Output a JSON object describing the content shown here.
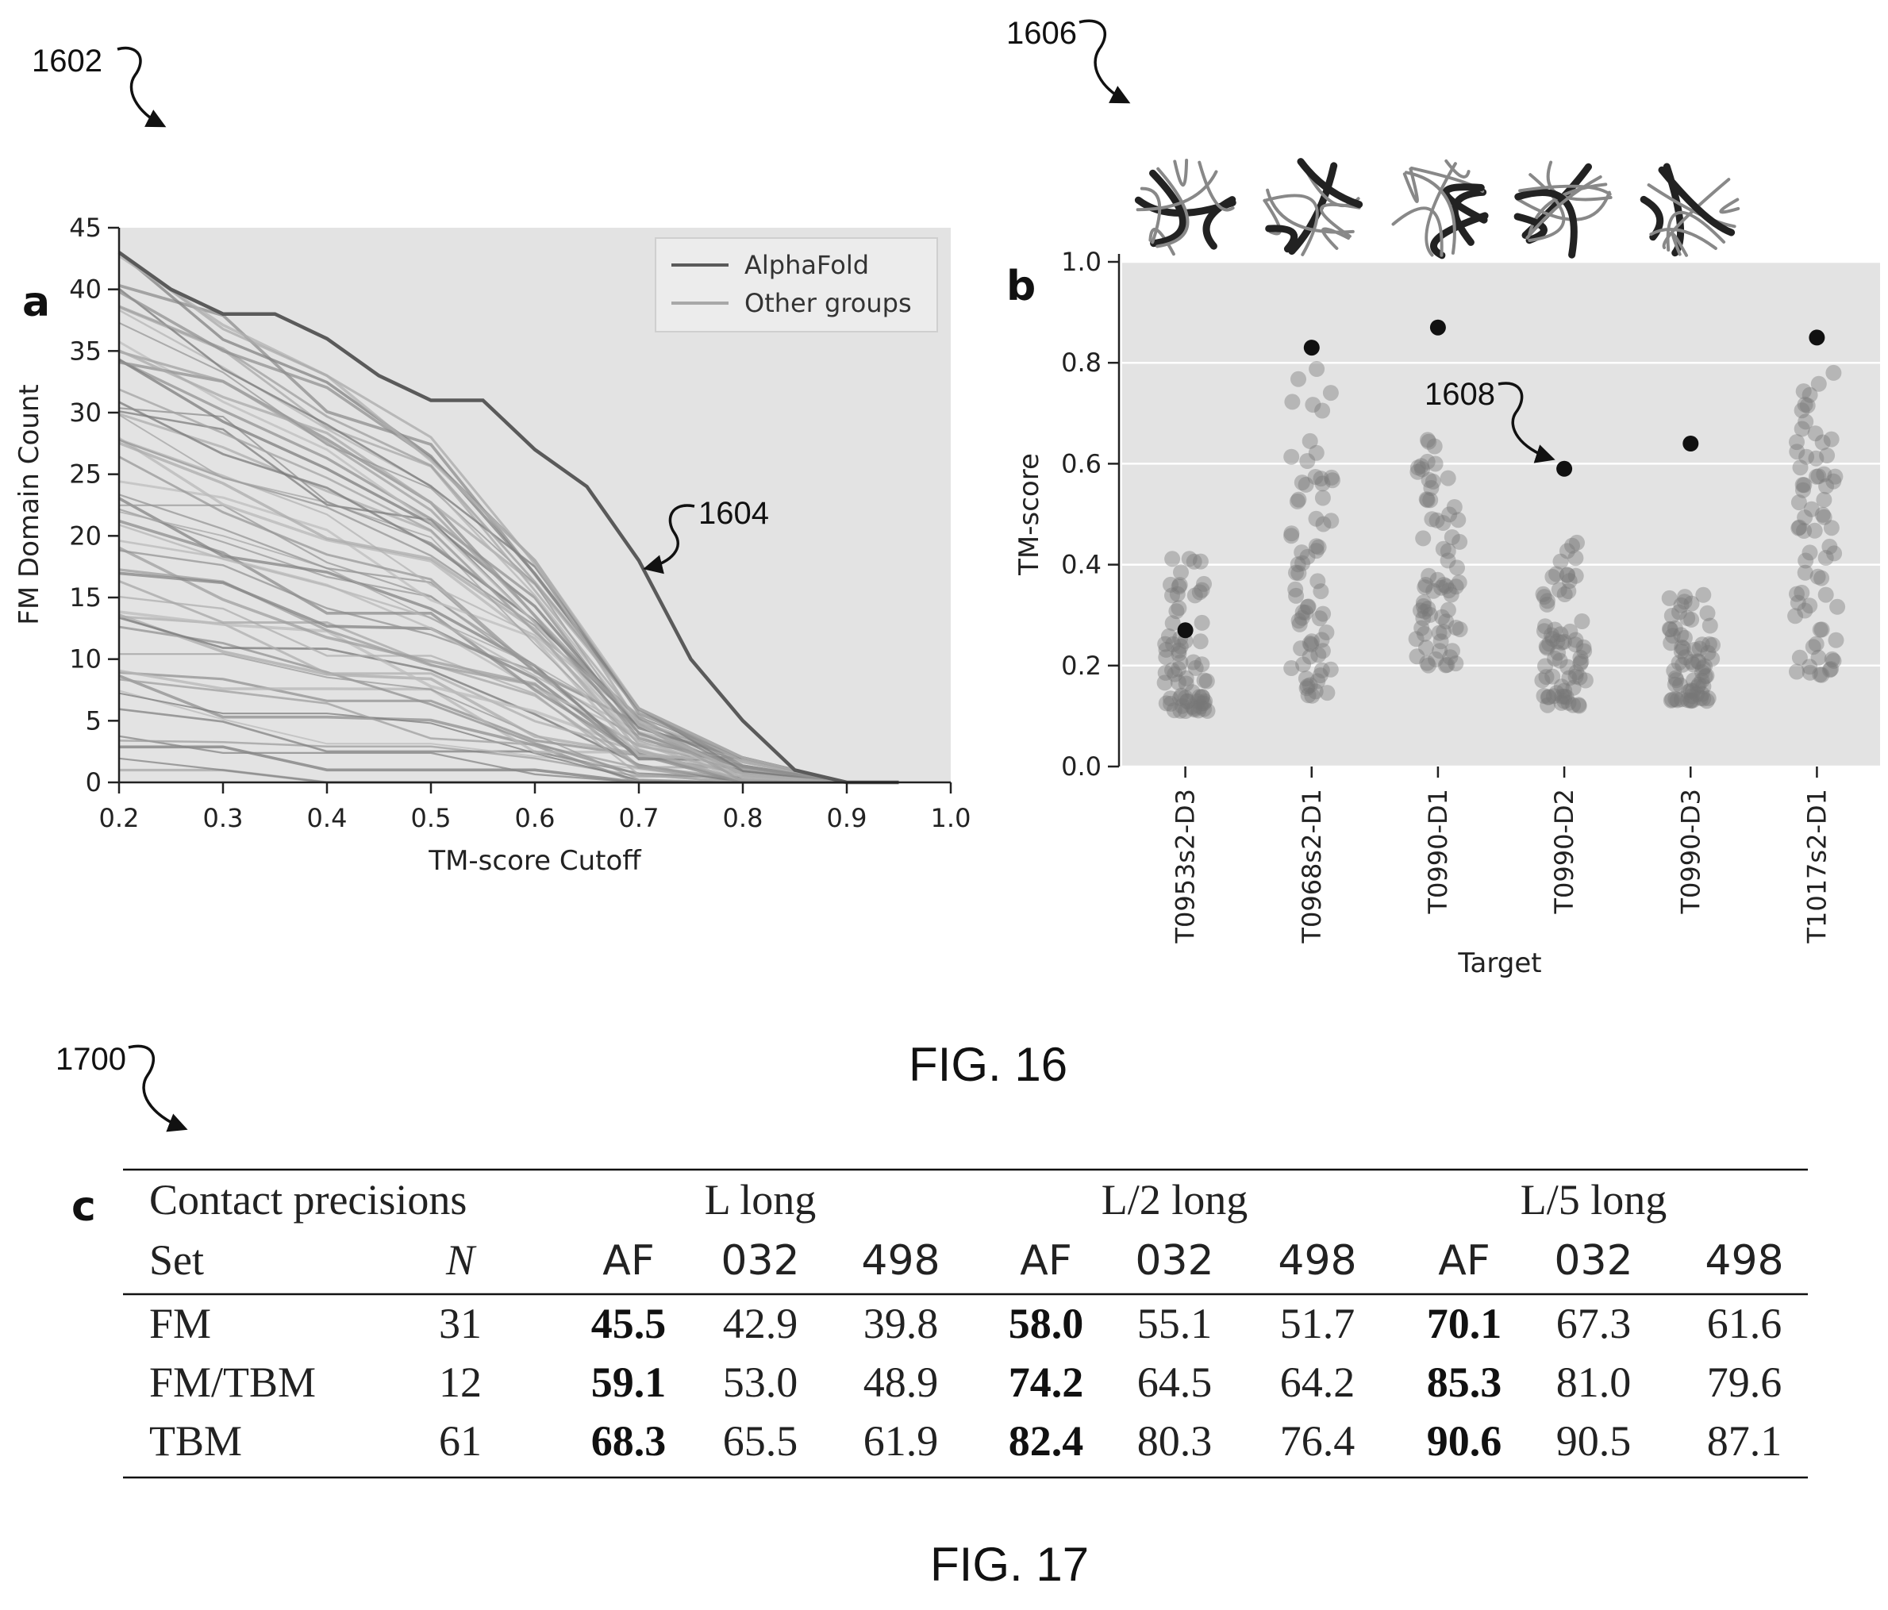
{
  "refs": {
    "r1602": "1602",
    "r1604": "1604",
    "r1606": "1606",
    "r1608": "1608",
    "r1700": "1700"
  },
  "captions": {
    "fig16": "FIG. 16",
    "fig17": "FIG. 17"
  },
  "colors": {
    "plot_bg": "#e3e3e3",
    "alphafold_line": "#5a5a5a",
    "other_lines": "#8e8e8e",
    "alphafold_dot": "#111111",
    "other_dot": "#777777"
  },
  "structure_icons": [
    "protein-structure-1",
    "protein-structure-2",
    "protein-structure-3",
    "protein-structure-4",
    "protein-structure-5"
  ],
  "chart_data": [
    {
      "panel": "a",
      "type": "line",
      "title": "",
      "xlabel": "TM-score Cutoff",
      "ylabel": "FM Domain Count",
      "xlim": [
        0.2,
        1.0
      ],
      "ylim": [
        0,
        45
      ],
      "xticks": [
        "0.2",
        "0.3",
        "0.4",
        "0.5",
        "0.6",
        "0.7",
        "0.8",
        "0.9",
        "1.0"
      ],
      "yticks": [
        "0",
        "5",
        "10",
        "15",
        "20",
        "25",
        "30",
        "35",
        "40",
        "45"
      ],
      "legend": {
        "placement": "top-right",
        "entries": [
          "AlphaFold",
          "Other groups"
        ]
      },
      "grid": false,
      "series": [
        {
          "name": "AlphaFold",
          "x": [
            0.2,
            0.25,
            0.3,
            0.35,
            0.4,
            0.45,
            0.5,
            0.55,
            0.6,
            0.65,
            0.7,
            0.75,
            0.8,
            0.85,
            0.9,
            0.95
          ],
          "y": [
            43,
            40,
            38,
            38,
            36,
            33,
            31,
            31,
            27,
            24,
            18,
            10,
            5,
            1,
            0,
            0
          ]
        },
        {
          "name": "Other groups",
          "count": 60,
          "x": [
            0.2,
            0.3,
            0.4,
            0.5,
            0.6,
            0.7,
            0.8,
            0.9,
            0.95
          ],
          "y_max": [
            43,
            38,
            33,
            28,
            18,
            6,
            2,
            0,
            0
          ],
          "y_min": [
            1,
            1,
            0,
            0,
            0,
            0,
            0,
            0,
            0
          ]
        }
      ]
    },
    {
      "panel": "b",
      "type": "scatter",
      "title": "",
      "xlabel": "Target",
      "ylabel": "TM-score",
      "ylim": [
        0.0,
        1.0
      ],
      "yticks": [
        "0.0",
        "0.2",
        "0.4",
        "0.6",
        "0.8",
        "1.0"
      ],
      "grid": true,
      "categories": [
        "T0953s2-D3",
        "T0968s2-D1",
        "T0990-D1",
        "T0990-D2",
        "T0990-D3",
        "T1017s2-D1"
      ],
      "alphafold": [
        0.27,
        0.83,
        0.87,
        0.59,
        0.64,
        0.85
      ],
      "other_groups_range": [
        [
          0.11,
          0.42
        ],
        [
          0.14,
          0.8
        ],
        [
          0.2,
          0.66
        ],
        [
          0.12,
          0.45
        ],
        [
          0.13,
          0.34
        ],
        [
          0.18,
          0.8
        ]
      ]
    },
    {
      "panel": "c",
      "type": "table",
      "header_groups": [
        "Contact precisions",
        "L long",
        "L/2 long",
        "L/5 long"
      ],
      "columns": [
        "Set",
        "N",
        "AF",
        "032",
        "498",
        "AF",
        "032",
        "498",
        "AF",
        "032",
        "498"
      ],
      "rows": [
        [
          "FM",
          "31",
          "45.5",
          "42.9",
          "39.8",
          "58.0",
          "55.1",
          "51.7",
          "70.1",
          "67.3",
          "61.6"
        ],
        [
          "FM/TBM",
          "12",
          "59.1",
          "53.0",
          "48.9",
          "74.2",
          "64.5",
          "64.2",
          "85.3",
          "81.0",
          "79.6"
        ],
        [
          "TBM",
          "61",
          "68.3",
          "65.5",
          "61.9",
          "82.4",
          "80.3",
          "76.4",
          "90.6",
          "90.5",
          "87.1"
        ]
      ]
    }
  ]
}
